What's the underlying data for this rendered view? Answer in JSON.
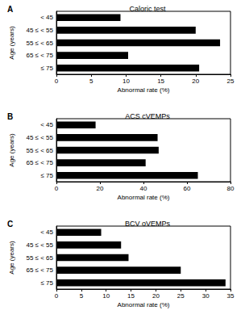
{
  "chart_data": [
    {
      "type": "bar",
      "orientation": "horizontal",
      "title": "Caloric test",
      "annotations": [
        "A"
      ],
      "x_label": "Abnormal rate (%)",
      "y_label": "Age (years)",
      "categories": [
        "< 45",
        "45 ≤ < 55",
        "55 ≤ < 65",
        "65 ≤ < 75",
        "≤ 75"
      ],
      "values": [
        9.2,
        20,
        23.5,
        10.3,
        20.5
      ],
      "color": "#000000",
      "xlim": [
        0,
        25
      ],
      "xticks": [
        0,
        5,
        10,
        15,
        20,
        25
      ],
      "grid": false
    },
    {
      "type": "bar",
      "orientation": "horizontal",
      "title": "ACS cVEMPs",
      "annotations": [
        "B"
      ],
      "x_label": "Abnormal rate (%)",
      "y_label": "Age (years)",
      "categories": [
        "< 45",
        "45 ≤ < 55",
        "55 ≤ < 65",
        "65 ≤ < 75",
        "≤ 75"
      ],
      "values": [
        18,
        46.5,
        47,
        41,
        65
      ],
      "color": "#000000",
      "xlim": [
        0,
        80
      ],
      "xticks": [
        0,
        20,
        40,
        60,
        80
      ],
      "grid": false
    },
    {
      "type": "bar",
      "orientation": "horizontal",
      "title": "BCV oVEMPs",
      "annotations": [
        "C"
      ],
      "x_label": "Abnormal rate (%)",
      "y_label": "Age (years)",
      "categories": [
        "< 45",
        "45 ≤ < 55",
        "55 ≤ < 65",
        "65 ≤ < 75",
        "≤ 75"
      ],
      "values": [
        9,
        13,
        14.5,
        25,
        34
      ],
      "color": "#000000",
      "xlim": [
        0,
        35
      ],
      "xticks": [
        0,
        5,
        10,
        15,
        20,
        25,
        30,
        35
      ],
      "grid": false
    }
  ]
}
